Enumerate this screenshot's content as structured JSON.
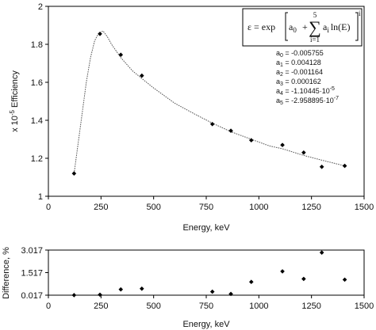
{
  "chart_data": [
    {
      "type": "scatter",
      "ylabel": "x 10-5 Efficiency",
      "ylabel_main": "x 10",
      "ylabel_sup": "-5",
      "ylabel_tail": " Efficiency",
      "xlabel": "Energy, keV",
      "xlim": [
        0,
        1500
      ],
      "ylim": [
        1,
        2
      ],
      "xticks": [
        0,
        250,
        500,
        750,
        1000,
        1250,
        1500
      ],
      "xtick_labels": [
        "0",
        "250",
        "500",
        "750",
        "1000",
        "1250",
        "1500"
      ],
      "yticks": [
        1,
        1.2,
        1.4,
        1.6,
        1.8,
        2
      ],
      "ytick_labels": [
        "1",
        "1.2",
        "1.4",
        "1.6",
        "1.8",
        "2"
      ],
      "grid": false,
      "series": [
        {
          "marker": "diamond",
          "x": [
            122,
            245,
            344,
            444,
            779,
            867,
            964,
            1112,
            1213,
            1299,
            1408
          ],
          "y": [
            1.12,
            1.855,
            1.745,
            1.635,
            1.38,
            1.345,
            1.295,
            1.27,
            1.23,
            1.155,
            1.16
          ]
        },
        {
          "line": "dotted",
          "x": [
            122,
            150,
            180,
            200,
            220,
            240,
            260,
            280,
            300,
            344,
            400,
            444,
            500,
            600,
            700,
            779,
            867,
            964,
            1050,
            1112,
            1213,
            1299,
            1408
          ],
          "y": [
            1.12,
            1.35,
            1.6,
            1.73,
            1.82,
            1.86,
            1.87,
            1.84,
            1.8,
            1.73,
            1.66,
            1.62,
            1.57,
            1.49,
            1.43,
            1.385,
            1.34,
            1.3,
            1.265,
            1.25,
            1.215,
            1.19,
            1.16
          ]
        }
      ],
      "formula": {
        "lhs": "ε = exp",
        "a0": "a",
        "a0_sub": "0",
        "plus": "+",
        "sum_top": "5",
        "sum_bottom": "i=1",
        "sigma": "∑",
        "term": "a",
        "term_sub": "i",
        "log": "ln(E)",
        "power": "i"
      },
      "coefficients": [
        {
          "label": "a",
          "sub": "0",
          "value": " = -0.005755"
        },
        {
          "label": "a",
          "sub": "1",
          "value": " = 0.004128"
        },
        {
          "label": "a",
          "sub": "2",
          "value": " = -0.001164"
        },
        {
          "label": "a",
          "sub": "3",
          "value": " = 0.000162"
        },
        {
          "label": "a",
          "sub": "4",
          "value": " = -1.10445·10",
          "sup": "-5"
        },
        {
          "label": "a",
          "sub": "5",
          "value": " = -2.958895·10",
          "sup": "-7"
        }
      ]
    },
    {
      "type": "scatter",
      "ylabel": "Difference, %",
      "xlabel": "Energy, keV",
      "xlim": [
        0,
        1500
      ],
      "ylim": [
        0.017,
        3.017
      ],
      "xticks": [
        0,
        250,
        500,
        750,
        1000,
        1250,
        1500
      ],
      "xtick_labels": [
        "0",
        "250",
        "500",
        "750",
        "1000",
        "1250",
        "1500"
      ],
      "yticks": [
        0.017,
        1.517,
        3.017
      ],
      "ytick_labels": [
        "0.017",
        "1.517",
        "3.017"
      ],
      "grid": false,
      "series": [
        {
          "marker": "diamond",
          "x": [
            122,
            245,
            344,
            444,
            779,
            867,
            964,
            1112,
            1213,
            1299,
            1408
          ],
          "y": [
            0.02,
            0.05,
            0.4,
            0.45,
            0.25,
            0.1,
            0.9,
            1.6,
            1.1,
            2.85,
            1.05
          ]
        }
      ]
    }
  ]
}
